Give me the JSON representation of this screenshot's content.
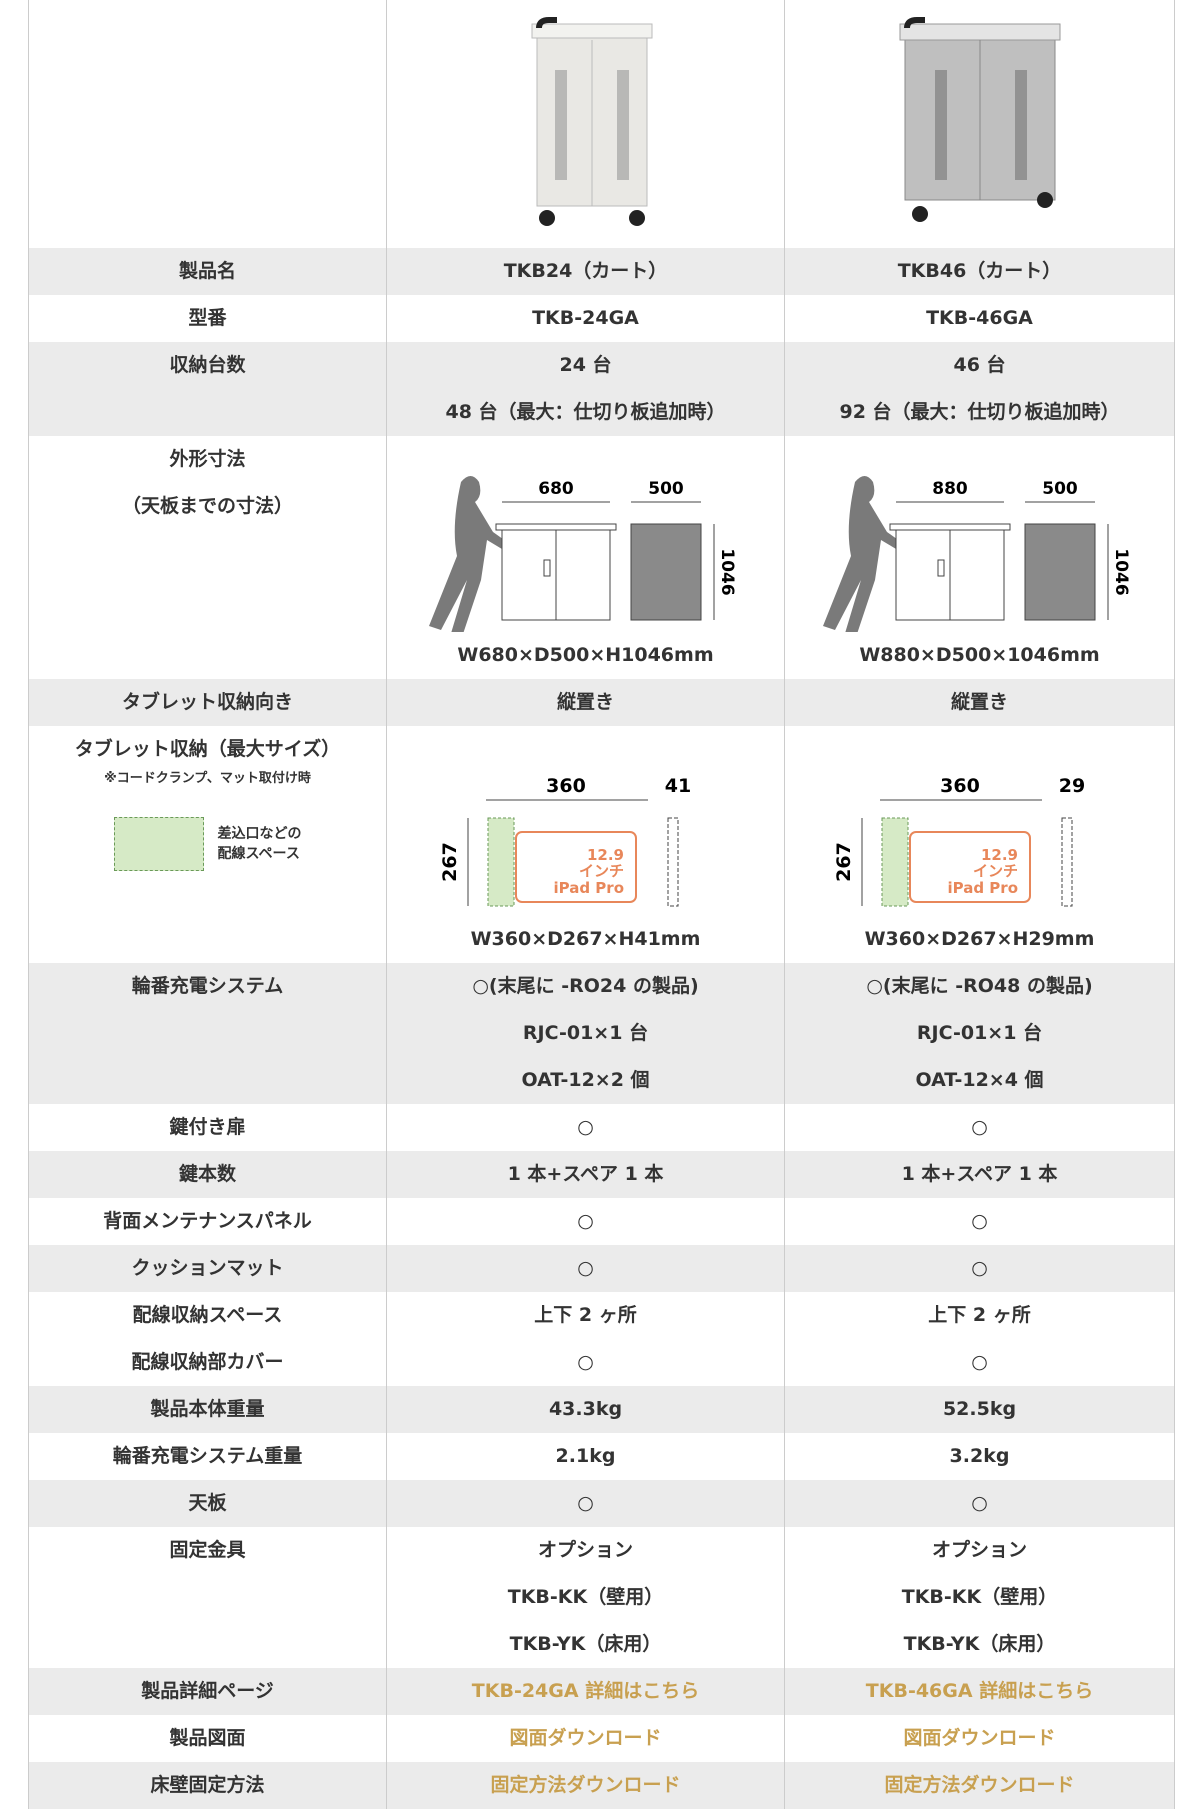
{
  "rows": [
    {
      "label": [
        "製品名"
      ],
      "cells": [
        [
          "TKB24（カート）"
        ],
        [
          "TKB46（カート）"
        ]
      ]
    },
    {
      "label": [
        "型番"
      ],
      "cells": [
        [
          "TKB-24GA"
        ],
        [
          "TKB-46GA"
        ]
      ]
    },
    {
      "label": [
        "収納台数"
      ],
      "cells": [
        [
          "24 台",
          "48 台（最大：仕切り板追加時）"
        ],
        [
          "46 台",
          "92 台（最大：仕切り板追加時）"
        ]
      ]
    },
    {
      "label": [
        "外形寸法",
        "（天板までの寸法）"
      ],
      "cells": [
        [
          "W680×D500×H1046mm"
        ],
        [
          "W880×D500×1046mm"
        ]
      ],
      "outline": [
        {
          "width": "680",
          "depth": "500",
          "height": "1046"
        },
        {
          "width": "880",
          "depth": "500",
          "height": "1046"
        }
      ]
    },
    {
      "label": [
        "タブレット収納向き"
      ],
      "cells": [
        [
          "縦置き"
        ],
        [
          "縦置き"
        ]
      ]
    },
    {
      "label": [
        "タブレット収納（最大サイズ）"
      ],
      "note": "※コードクランプ、マット取付け時",
      "legend": [
        "差込口などの",
        "配線スペース"
      ],
      "cells": [
        [
          "W360×D267×H41mm"
        ],
        [
          "W360×D267×H29mm"
        ]
      ],
      "tablet": [
        {
          "width": "360",
          "thickness": "41",
          "depth": "267",
          "size": "12.9",
          "unit": "インチ",
          "model": "iPad Pro"
        },
        {
          "width": "360",
          "thickness": "29",
          "depth": "267",
          "size": "12.9",
          "unit": "インチ",
          "model": "iPad Pro"
        }
      ]
    },
    {
      "label": [
        "輪番充電システム"
      ],
      "cells": [
        [
          "○(末尾に -RO24 の製品)",
          "RJC-01×1 台",
          "OAT-12×2 個"
        ],
        [
          "○(末尾に -RO48 の製品)",
          "RJC-01×1 台",
          "OAT-12×4 個"
        ]
      ]
    },
    {
      "label": [
        "鍵付き扉"
      ],
      "cells": [
        [
          "○"
        ],
        [
          "○"
        ]
      ]
    },
    {
      "label": [
        "鍵本数"
      ],
      "cells": [
        [
          "1 本+スペア 1 本"
        ],
        [
          "1 本+スペア 1 本"
        ]
      ]
    },
    {
      "label": [
        "背面メンテナンスパネル"
      ],
      "cells": [
        [
          "○"
        ],
        [
          "○"
        ]
      ]
    },
    {
      "label": [
        "クッションマット"
      ],
      "cells": [
        [
          "○"
        ],
        [
          "○"
        ]
      ]
    },
    {
      "label": [
        "配線収納スペース"
      ],
      "cells": [
        [
          "上下 2 ヶ所"
        ],
        [
          "上下 2 ヶ所"
        ]
      ]
    },
    {
      "label": [
        "配線収納部カバー"
      ],
      "cells": [
        [
          "○"
        ],
        [
          "○"
        ]
      ]
    },
    {
      "label": [
        "製品本体重量"
      ],
      "cells": [
        [
          "43.3kg"
        ],
        [
          "52.5kg"
        ]
      ]
    },
    {
      "label": [
        "輪番充電システム重量"
      ],
      "cells": [
        [
          "2.1kg"
        ],
        [
          "3.2kg"
        ]
      ]
    },
    {
      "label": [
        "天板"
      ],
      "cells": [
        [
          "○"
        ],
        [
          "○"
        ]
      ]
    },
    {
      "label": [
        "固定金具"
      ],
      "cells": [
        [
          "オプション",
          "TKB-KK（壁用）",
          "TKB-YK（床用）"
        ],
        [
          "オプション",
          "TKB-KK（壁用）",
          "TKB-YK（床用）"
        ]
      ]
    },
    {
      "label": [
        "製品詳細ページ"
      ],
      "link": true,
      "cells": [
        [
          "TKB-24GA 詳細はこちら"
        ],
        [
          "TKB-46GA 詳細はこちら"
        ]
      ]
    },
    {
      "label": [
        "製品図面"
      ],
      "link": true,
      "cells": [
        [
          "図面ダウンロード"
        ],
        [
          "図面ダウンロード"
        ]
      ]
    },
    {
      "label": [
        "床壁固定方法"
      ],
      "link": true,
      "cells": [
        [
          "固定方法ダウンロード"
        ],
        [
          "固定方法ダウンロード"
        ]
      ]
    }
  ]
}
